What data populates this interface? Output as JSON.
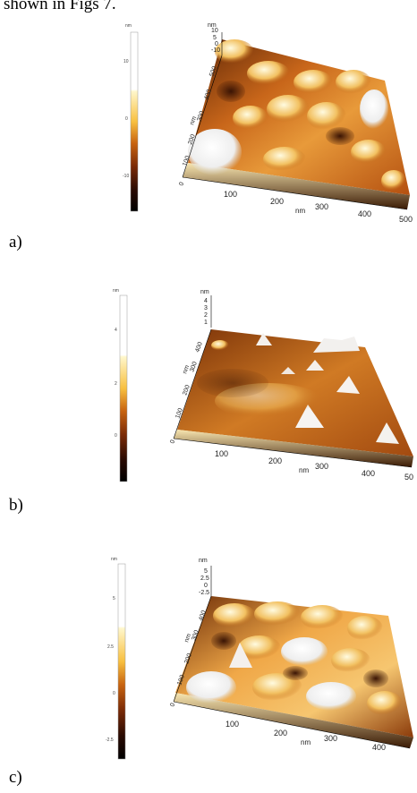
{
  "intro_text": "shown in Figs 7.",
  "panels": [
    {
      "label": "a)",
      "colorbar": {
        "unit": "nm",
        "ticks": [
          "10",
          "0",
          "-10"
        ]
      },
      "z_axis": {
        "unit": "nm",
        "ticks": [
          "10",
          "5",
          "0",
          "-10"
        ]
      },
      "y_axis": {
        "unit": "nm",
        "ticks": [
          "500",
          "400",
          "300",
          "200",
          "100",
          "0"
        ]
      },
      "x_axis": {
        "unit": "nm",
        "ticks": [
          "100",
          "200",
          "300",
          "400",
          "500"
        ]
      }
    },
    {
      "label": "b)",
      "colorbar": {
        "unit": "nm",
        "ticks": [
          "4",
          "2",
          "0"
        ]
      },
      "z_axis": {
        "unit": "nm",
        "ticks": [
          "4",
          "3",
          "2",
          "1"
        ]
      },
      "y_axis": {
        "unit": "nm",
        "ticks": [
          "400",
          "300",
          "200",
          "100",
          "0"
        ]
      },
      "x_axis": {
        "unit": "nm",
        "ticks": [
          "100",
          "200",
          "300",
          "400",
          "50"
        ]
      }
    },
    {
      "label": "c)",
      "colorbar": {
        "unit": "nm",
        "ticks": [
          "5",
          "2.5",
          "0",
          "-2.5"
        ]
      },
      "z_axis": {
        "unit": "nm",
        "ticks": [
          "5",
          "2.5",
          "0",
          "-2.5"
        ]
      },
      "y_axis": {
        "unit": "nm",
        "ticks": [
          "400",
          "300",
          "200",
          "100",
          "0"
        ]
      },
      "x_axis": {
        "unit": "nm",
        "ticks": [
          "100",
          "200",
          "300",
          "400"
        ]
      }
    }
  ]
}
